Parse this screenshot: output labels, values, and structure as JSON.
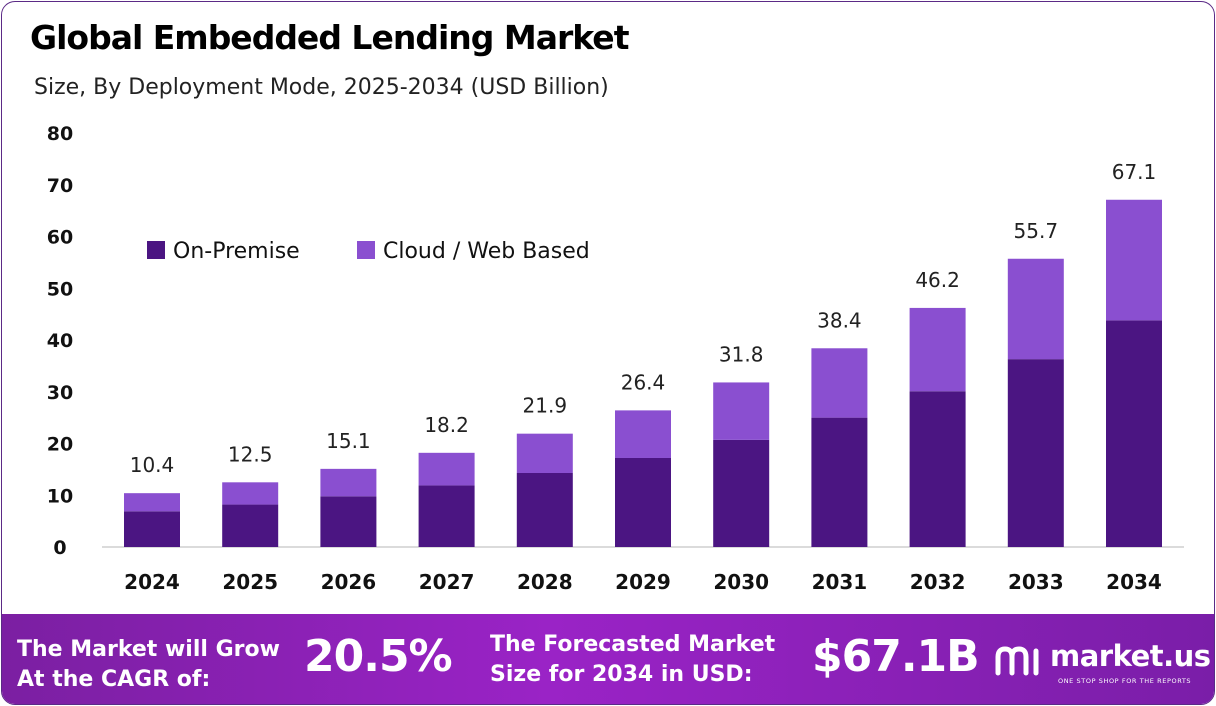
{
  "chart_data": {
    "type": "bar",
    "stacked": true,
    "title": "Global Embedded Lending Market",
    "subtitle": "Size, By Deployment Mode, 2025-2034 (USD Billion)",
    "categories": [
      "2024",
      "2025",
      "2026",
      "2027",
      "2028",
      "2029",
      "2030",
      "2031",
      "2032",
      "2033",
      "2034"
    ],
    "series": [
      {
        "name": "On-Premise",
        "color": "#4b1582",
        "values": [
          6.9,
          8.2,
          9.8,
          11.9,
          14.3,
          17.2,
          20.7,
          25.0,
          30.1,
          36.3,
          43.8
        ]
      },
      {
        "name": "Cloud / Web Based",
        "color": "#8a4fd0",
        "values": [
          3.5,
          4.3,
          5.3,
          6.3,
          7.6,
          9.2,
          11.1,
          13.4,
          16.1,
          19.4,
          23.3
        ]
      }
    ],
    "totals": [
      "10.4",
      "12.5",
      "15.1",
      "18.2",
      "21.9",
      "26.4",
      "31.8",
      "38.4",
      "46.2",
      "55.7",
      "67.1"
    ],
    "yticks": [
      "0",
      "10",
      "20",
      "30",
      "40",
      "50",
      "60",
      "70",
      "80"
    ],
    "ylim": [
      0,
      80
    ],
    "grid": false,
    "legend_position": "top-left"
  },
  "banner": {
    "cagr_label_line1": "The Market will Grow",
    "cagr_label_line2": "At the CAGR of:",
    "cagr_value": "20.5%",
    "forecast_label_line1": "The Forecasted Market",
    "forecast_label_line2": "Size for 2034 in USD:",
    "forecast_value": "$67.1B",
    "brand_name": "market.us",
    "brand_tagline": "ONE STOP SHOP FOR THE REPORTS",
    "brand_icon": "market-us-logo-icon"
  }
}
